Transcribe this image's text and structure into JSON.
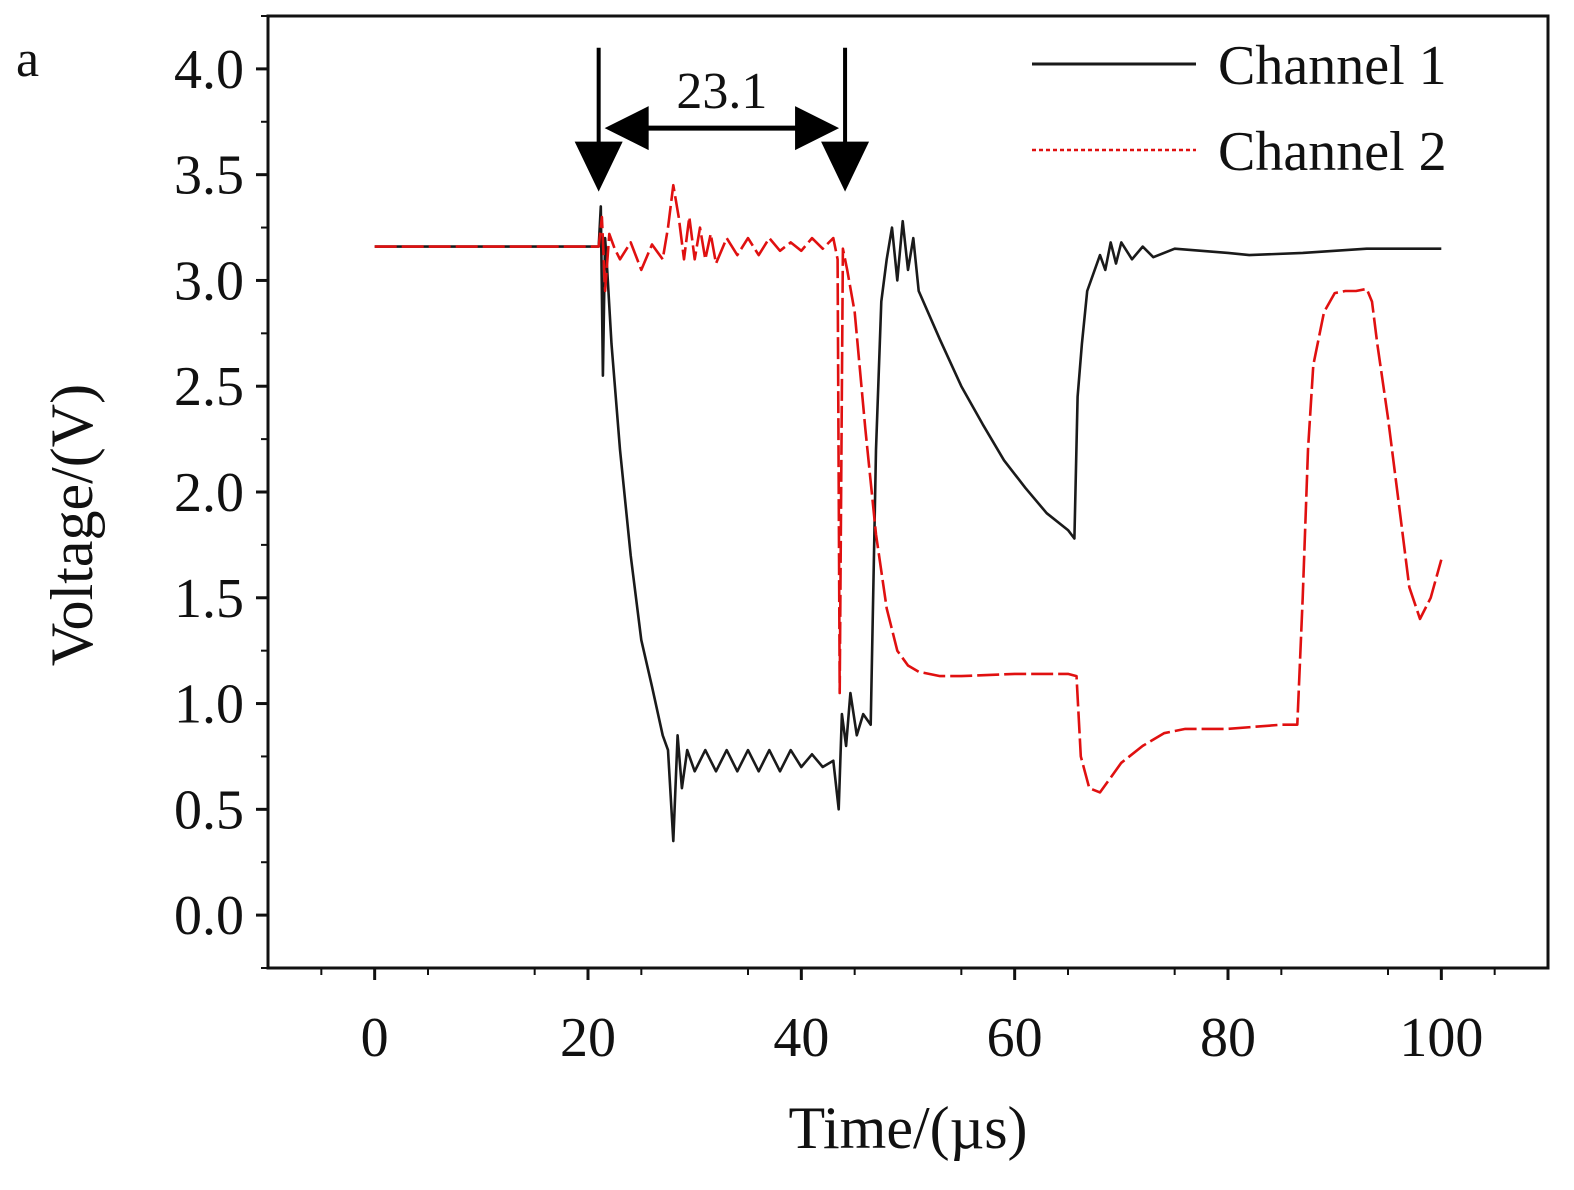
{
  "panel_label": "a",
  "chart_data": {
    "type": "line",
    "title": "",
    "xlabel": "Time/(µs)",
    "ylabel": "Voltage/(V)",
    "xlim": [
      -10,
      110
    ],
    "ylim": [
      -0.25,
      4.25
    ],
    "xticks": [
      0,
      20,
      40,
      60,
      80,
      100
    ],
    "xtick_labels": [
      "0",
      "20",
      "40",
      "60",
      "80",
      "100"
    ],
    "yticks": [
      0.0,
      0.5,
      1.0,
      1.5,
      2.0,
      2.5,
      3.0,
      3.5,
      4.0
    ],
    "ytick_labels": [
      "0.0",
      "0.5",
      "1.0",
      "1.5",
      "2.0",
      "2.5",
      "3.0",
      "3.5",
      "4.0"
    ],
    "grid": false,
    "legend_position": "top-right",
    "series": [
      {
        "name": "Channel 1",
        "color": "#1a1a1a",
        "style": "solid",
        "points": [
          [
            0,
            3.16
          ],
          [
            21.0,
            3.16
          ],
          [
            21.2,
            3.35
          ],
          [
            21.4,
            2.55
          ],
          [
            21.6,
            3.2
          ],
          [
            21.8,
            3.05
          ],
          [
            22.2,
            2.7
          ],
          [
            23,
            2.2
          ],
          [
            24,
            1.7
          ],
          [
            25,
            1.3
          ],
          [
            26,
            1.08
          ],
          [
            27,
            0.85
          ],
          [
            27.5,
            0.78
          ],
          [
            28,
            0.35
          ],
          [
            28.4,
            0.85
          ],
          [
            28.8,
            0.6
          ],
          [
            29.3,
            0.78
          ],
          [
            30,
            0.68
          ],
          [
            31,
            0.78
          ],
          [
            32,
            0.68
          ],
          [
            33,
            0.78
          ],
          [
            34,
            0.68
          ],
          [
            35,
            0.78
          ],
          [
            36,
            0.68
          ],
          [
            37,
            0.78
          ],
          [
            38,
            0.68
          ],
          [
            39,
            0.78
          ],
          [
            40,
            0.7
          ],
          [
            41,
            0.76
          ],
          [
            42,
            0.7
          ],
          [
            43,
            0.73
          ],
          [
            43.5,
            0.5
          ],
          [
            43.8,
            0.95
          ],
          [
            44.2,
            0.8
          ],
          [
            44.6,
            1.05
          ],
          [
            45.2,
            0.85
          ],
          [
            45.8,
            0.95
          ],
          [
            46.5,
            0.9
          ],
          [
            47,
            2.2
          ],
          [
            47.5,
            2.9
          ],
          [
            48,
            3.1
          ],
          [
            48.5,
            3.25
          ],
          [
            49,
            3.0
          ],
          [
            49.5,
            3.28
          ],
          [
            50,
            3.05
          ],
          [
            50.5,
            3.2
          ],
          [
            51,
            2.95
          ],
          [
            53,
            2.72
          ],
          [
            55,
            2.5
          ],
          [
            57,
            2.32
          ],
          [
            59,
            2.15
          ],
          [
            61,
            2.02
          ],
          [
            63,
            1.9
          ],
          [
            65,
            1.82
          ],
          [
            65.6,
            1.78
          ],
          [
            65.9,
            2.45
          ],
          [
            66.3,
            2.7
          ],
          [
            66.8,
            2.95
          ],
          [
            67.5,
            3.05
          ],
          [
            68,
            3.12
          ],
          [
            68.5,
            3.05
          ],
          [
            69,
            3.18
          ],
          [
            69.5,
            3.08
          ],
          [
            70,
            3.18
          ],
          [
            71,
            3.1
          ],
          [
            72,
            3.16
          ],
          [
            73,
            3.11
          ],
          [
            75,
            3.15
          ],
          [
            80,
            3.13
          ],
          [
            82,
            3.12
          ],
          [
            87,
            3.13
          ],
          [
            93,
            3.15
          ],
          [
            100,
            3.15
          ]
        ]
      },
      {
        "name": "Channel 2",
        "color": "#e01010",
        "style": "dashed",
        "points": [
          [
            0,
            3.16
          ],
          [
            21.0,
            3.16
          ],
          [
            21.3,
            3.3
          ],
          [
            21.6,
            2.95
          ],
          [
            22,
            3.22
          ],
          [
            22.5,
            3.15
          ],
          [
            23,
            3.1
          ],
          [
            24,
            3.18
          ],
          [
            25,
            3.05
          ],
          [
            26,
            3.17
          ],
          [
            27,
            3.1
          ],
          [
            27.5,
            3.25
          ],
          [
            28,
            3.45
          ],
          [
            28.5,
            3.3
          ],
          [
            29,
            3.1
          ],
          [
            29.5,
            3.3
          ],
          [
            30,
            3.1
          ],
          [
            30.5,
            3.25
          ],
          [
            31,
            3.1
          ],
          [
            31.5,
            3.22
          ],
          [
            32,
            3.08
          ],
          [
            33,
            3.2
          ],
          [
            34,
            3.12
          ],
          [
            35,
            3.2
          ],
          [
            36,
            3.12
          ],
          [
            37,
            3.2
          ],
          [
            38,
            3.14
          ],
          [
            39,
            3.18
          ],
          [
            40,
            3.14
          ],
          [
            41,
            3.2
          ],
          [
            42,
            3.15
          ],
          [
            43,
            3.2
          ],
          [
            43.4,
            3.1
          ],
          [
            43.6,
            1.05
          ],
          [
            43.9,
            3.15
          ],
          [
            44.3,
            3.05
          ],
          [
            45,
            2.85
          ],
          [
            46,
            2.3
          ],
          [
            47,
            1.8
          ],
          [
            48,
            1.45
          ],
          [
            49,
            1.25
          ],
          [
            50,
            1.18
          ],
          [
            51,
            1.15
          ],
          [
            53,
            1.13
          ],
          [
            55,
            1.13
          ],
          [
            60,
            1.14
          ],
          [
            65,
            1.14
          ],
          [
            65.8,
            1.13
          ],
          [
            66.2,
            0.75
          ],
          [
            67,
            0.6
          ],
          [
            68,
            0.58
          ],
          [
            69,
            0.65
          ],
          [
            70,
            0.72
          ],
          [
            72,
            0.8
          ],
          [
            74,
            0.86
          ],
          [
            76,
            0.88
          ],
          [
            80,
            0.88
          ],
          [
            85,
            0.9
          ],
          [
            86.5,
            0.9
          ],
          [
            87,
            1.5
          ],
          [
            87.5,
            2.2
          ],
          [
            88,
            2.6
          ],
          [
            89,
            2.85
          ],
          [
            90,
            2.94
          ],
          [
            91,
            2.95
          ],
          [
            92,
            2.95
          ],
          [
            93,
            2.96
          ],
          [
            93.5,
            2.9
          ],
          [
            94,
            2.7
          ],
          [
            95,
            2.35
          ],
          [
            96,
            1.95
          ],
          [
            97,
            1.55
          ],
          [
            98,
            1.4
          ],
          [
            99,
            1.5
          ],
          [
            100,
            1.68
          ]
        ]
      }
    ],
    "annotations": [
      {
        "text": "23.1",
        "from_x": 21.0,
        "to_x": 44.1,
        "y": 3.72,
        "marker_top_y": 4.1,
        "marker_tip_y": 3.42
      }
    ]
  }
}
